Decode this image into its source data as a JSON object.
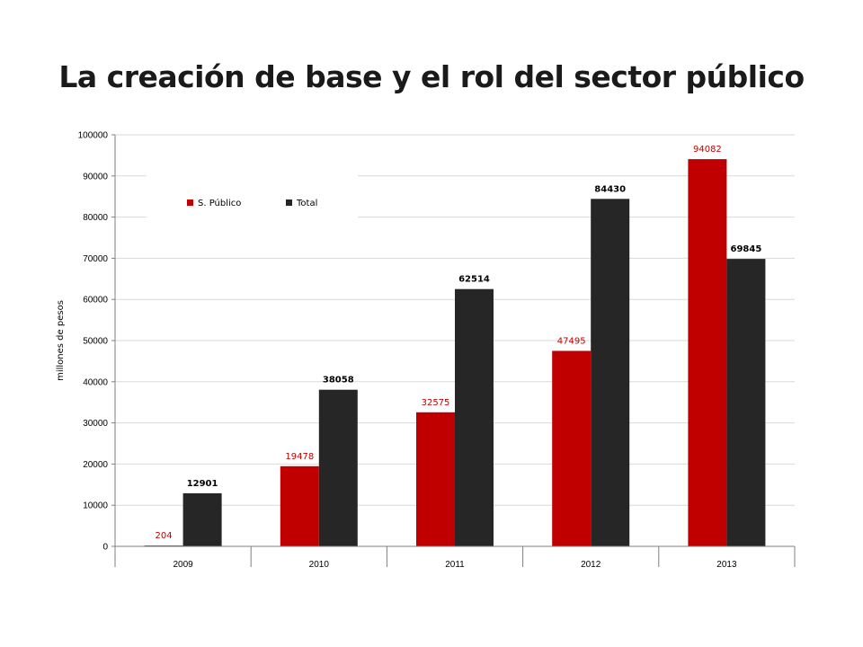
{
  "title": "La creación de base y el rol del sector público",
  "chart_data": {
    "type": "bar",
    "categories": [
      "2009",
      "2010",
      "2011",
      "2012",
      "2013"
    ],
    "series": [
      {
        "name": "S. Público",
        "values": [
          204,
          19478,
          32575,
          47495,
          94082
        ],
        "color": "#c00000"
      },
      {
        "name": "Total",
        "values": [
          12901,
          38058,
          62514,
          84430,
          69845
        ],
        "color": "#262626"
      }
    ],
    "ylabel": "millones de pesos",
    "xlabel": "",
    "ylim": [
      0,
      100000
    ],
    "yticks": [
      0,
      10000,
      20000,
      30000,
      40000,
      50000,
      60000,
      70000,
      80000,
      90000,
      100000
    ],
    "grid": true,
    "legend_position": "top-left"
  }
}
